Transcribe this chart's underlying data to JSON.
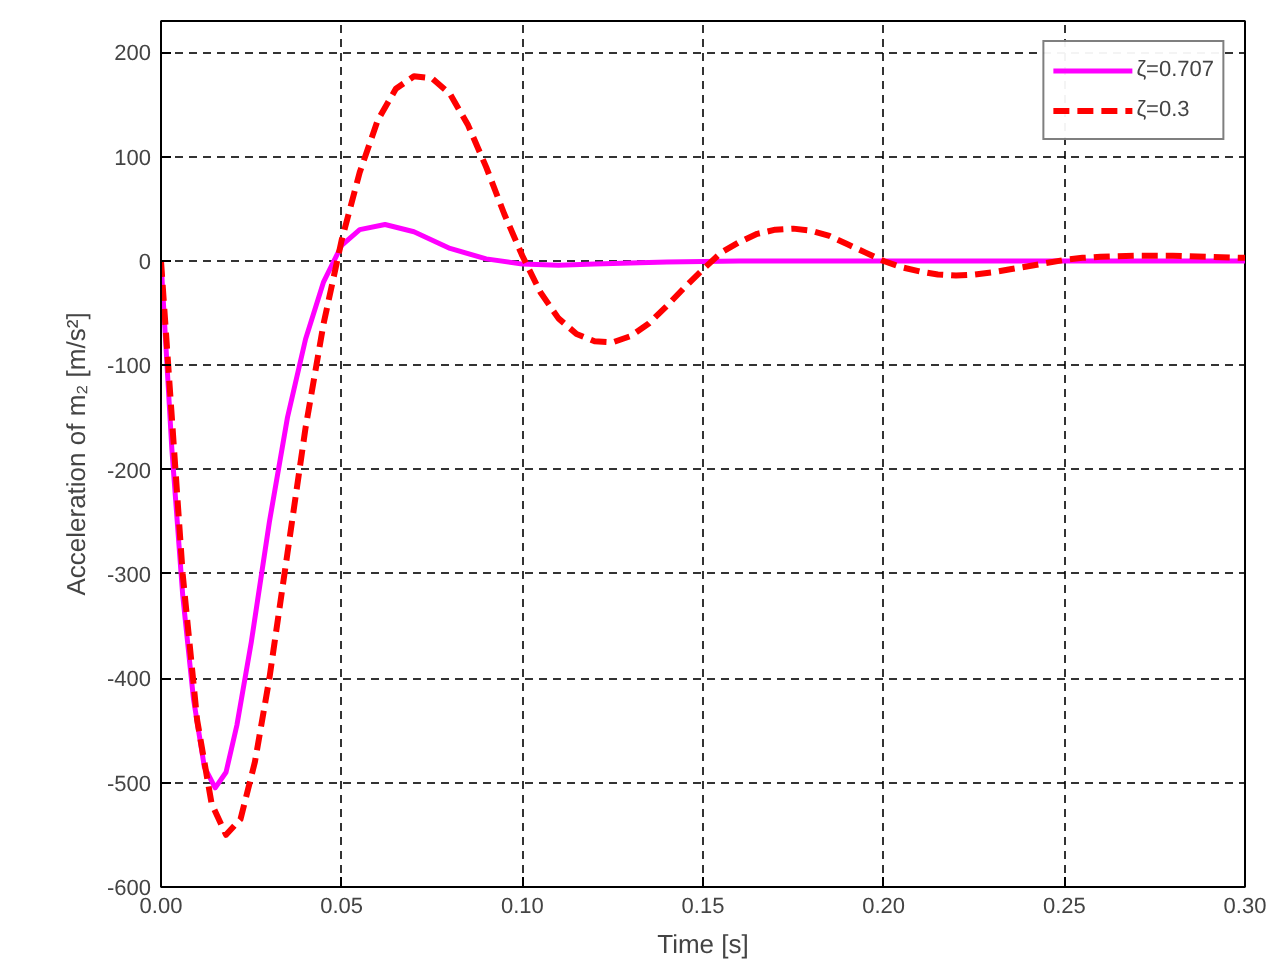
{
  "chart_data": {
    "type": "line",
    "xlabel": "Time [s]",
    "ylabel": "Acceleration of m₂ [m/s²]",
    "xlim": [
      0,
      0.3
    ],
    "ylim": [
      -600,
      230
    ],
    "xticks": [
      {
        "value": 0,
        "label": "0.00"
      },
      {
        "value": 0.05,
        "label": "0.05"
      },
      {
        "value": 0.1,
        "label": "0.10"
      },
      {
        "value": 0.15,
        "label": "0.15"
      },
      {
        "value": 0.2,
        "label": "0.20"
      },
      {
        "value": 0.25,
        "label": "0.25"
      },
      {
        "value": 0.3,
        "label": "0.30"
      }
    ],
    "yticks": [
      -600,
      -500,
      -400,
      -300,
      -200,
      -100,
      0,
      100,
      200
    ],
    "grid": true,
    "legend": "top right",
    "series": [
      {
        "name": "ζ=0.707",
        "color": "#ff00ff",
        "line_style": "solid",
        "x": [
          0,
          0.003,
          0.006,
          0.009,
          0.012,
          0.015,
          0.018,
          0.021,
          0.025,
          0.03,
          0.035,
          0.04,
          0.045,
          0.05,
          0.055,
          0.062,
          0.07,
          0.08,
          0.09,
          0.1,
          0.11,
          0.12,
          0.14,
          0.16,
          0.2,
          0.25,
          0.3
        ],
        "values": [
          0,
          -180,
          -320,
          -420,
          -485,
          -505,
          -490,
          -445,
          -365,
          -250,
          -150,
          -75,
          -20,
          15,
          30,
          35,
          28,
          12,
          2,
          -3,
          -4,
          -3,
          -1,
          0,
          0,
          0,
          0
        ]
      },
      {
        "name": "ζ=0.3",
        "color": "#ff0000",
        "line_style": "dashed",
        "x": [
          0,
          0.003,
          0.006,
          0.01,
          0.014,
          0.018,
          0.022,
          0.026,
          0.03,
          0.035,
          0.04,
          0.045,
          0.05,
          0.055,
          0.06,
          0.065,
          0.07,
          0.075,
          0.08,
          0.085,
          0.09,
          0.095,
          0.1,
          0.105,
          0.11,
          0.115,
          0.12,
          0.125,
          0.13,
          0.135,
          0.14,
          0.145,
          0.15,
          0.155,
          0.16,
          0.165,
          0.17,
          0.175,
          0.18,
          0.185,
          0.19,
          0.195,
          0.2,
          0.205,
          0.21,
          0.215,
          0.22,
          0.225,
          0.23,
          0.235,
          0.24,
          0.245,
          0.25,
          0.255,
          0.26,
          0.27,
          0.28,
          0.29,
          0.3
        ],
        "values": [
          0,
          -150,
          -300,
          -440,
          -520,
          -550,
          -535,
          -480,
          -400,
          -280,
          -160,
          -60,
          20,
          85,
          135,
          165,
          177,
          175,
          160,
          130,
          90,
          45,
          5,
          -30,
          -55,
          -70,
          -77,
          -78,
          -72,
          -60,
          -43,
          -25,
          -8,
          8,
          18,
          26,
          30,
          31,
          29,
          24,
          16,
          8,
          0,
          -6,
          -10,
          -13,
          -14,
          -13,
          -11,
          -8,
          -5,
          -2,
          1,
          3,
          4,
          5,
          5,
          4,
          3
        ]
      }
    ]
  }
}
